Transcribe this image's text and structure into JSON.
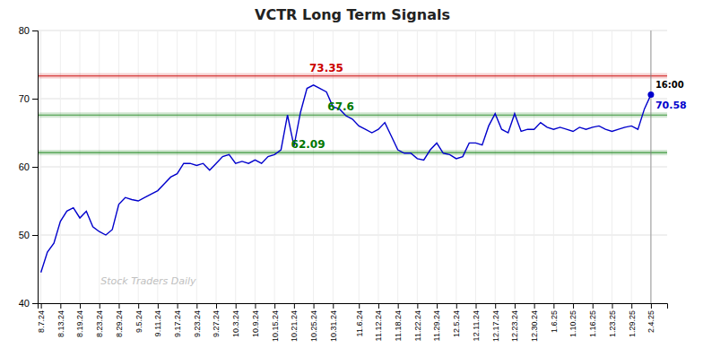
{
  "chart_data": {
    "type": "line",
    "title": "VCTR Long Term Signals",
    "watermark": "Stock Traders Daily",
    "last_time": "16:00",
    "color": "#0000cc",
    "categories": [
      "8.7.24",
      null,
      null,
      "8.13.24",
      null,
      null,
      "8.19.24",
      null,
      null,
      "8.23.24",
      null,
      null,
      "8.29.24",
      null,
      null,
      "9.5.24",
      null,
      null,
      "9.11.24",
      null,
      null,
      "9.17.24",
      null,
      null,
      "9.23.24",
      null,
      null,
      "9.27.24",
      null,
      null,
      "10.3.24",
      null,
      null,
      "10.9.24",
      null,
      null,
      "10.15.24",
      null,
      null,
      "10.21.24",
      null,
      null,
      "10.25.24",
      null,
      null,
      "10.31.24",
      null,
      null,
      null,
      "11.6.24",
      null,
      null,
      "11.12.24",
      null,
      null,
      "11.18.24",
      null,
      null,
      "11.22.24",
      null,
      null,
      "11.29.24",
      null,
      null,
      "12.5.24",
      null,
      null,
      "12.11.24",
      null,
      null,
      "12.17.24",
      null,
      null,
      "12.23.24",
      null,
      null,
      "12.30.24",
      null,
      null,
      "1.6.25",
      null,
      null,
      "1.10.25",
      null,
      null,
      "1.16.25",
      null,
      null,
      "1.23.25",
      null,
      null,
      "1.29.25",
      null,
      null,
      "2.4.25"
    ],
    "values": [
      44.5,
      47.5,
      48.8,
      52.0,
      53.5,
      54.0,
      52.5,
      53.5,
      51.2,
      50.5,
      50.0,
      50.8,
      54.5,
      55.5,
      55.2,
      55.0,
      55.5,
      56.0,
      56.5,
      57.5,
      58.5,
      59.0,
      60.5,
      60.5,
      60.2,
      60.5,
      59.5,
      60.5,
      61.5,
      61.8,
      60.5,
      60.8,
      60.5,
      61.0,
      60.5,
      61.5,
      61.8,
      62.5,
      67.6,
      63.0,
      68.0,
      71.5,
      72.0,
      71.5,
      71.0,
      68.8,
      68.5,
      67.5,
      67.0,
      66.0,
      65.5,
      65.0,
      65.5,
      66.5,
      64.5,
      62.5,
      62.0,
      62.0,
      61.2,
      61.0,
      62.5,
      63.5,
      62.0,
      61.8,
      61.2,
      61.5,
      63.5,
      63.5,
      63.2,
      66.0,
      67.8,
      65.5,
      65.0,
      67.8,
      65.2,
      65.5,
      65.5,
      66.5,
      65.8,
      65.5,
      65.8,
      65.5,
      65.2,
      65.8,
      65.5,
      65.8,
      66.0,
      65.5,
      65.2,
      65.5,
      65.8,
      66.0,
      65.5,
      68.5,
      70.58
    ],
    "reference_lines": [
      {
        "value": 73.35,
        "color": "#cc0000"
      },
      {
        "value": 67.6,
        "color": "#007700"
      },
      {
        "value": 62.09,
        "color": "#007700"
      }
    ],
    "ylim": [
      40,
      80
    ],
    "yticks": [
      40,
      50,
      60,
      70,
      80
    ],
    "grid": true
  }
}
